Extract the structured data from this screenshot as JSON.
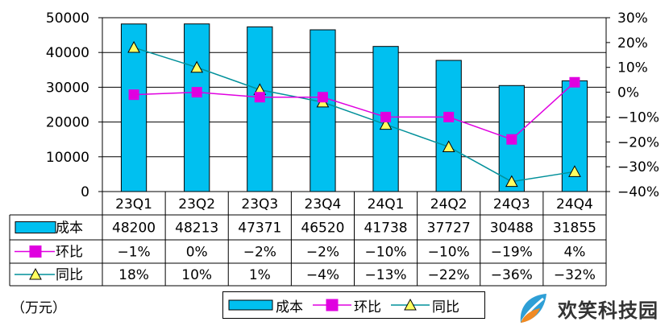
{
  "unit_label": "（万元）",
  "legend": {
    "cost": "成本",
    "qoq": "环比",
    "yoy": "同比"
  },
  "watermark": "欢笑科技园",
  "colors": {
    "bar": "#00c0f0",
    "qoq": "#e000e0",
    "yoy": "#00909a",
    "marker_yoy": "#ffff60"
  },
  "chart_data": {
    "type": "bar",
    "categories": [
      "23Q1",
      "23Q2",
      "23Q3",
      "23Q4",
      "24Q1",
      "24Q2",
      "24Q3",
      "24Q4"
    ],
    "series": [
      {
        "name": "成本",
        "type": "bar",
        "axis": "left",
        "values": [
          48200,
          48213,
          47371,
          46520,
          41738,
          37727,
          30488,
          31855
        ],
        "labels": [
          "48200",
          "48213",
          "47371",
          "46520",
          "41738",
          "37727",
          "30488",
          "31855"
        ]
      },
      {
        "name": "环比",
        "type": "line",
        "axis": "right",
        "values": [
          -1,
          0,
          -2,
          -2,
          -10,
          -10,
          -19,
          4
        ],
        "labels": [
          "-1%",
          "0%",
          "-2%",
          "-2%",
          "-10%",
          "-10%",
          "-19%",
          "4%"
        ]
      },
      {
        "name": "同比",
        "type": "line",
        "axis": "right",
        "values": [
          18,
          10,
          1,
          -4,
          -13,
          -22,
          -36,
          -32
        ],
        "labels": [
          "18%",
          "10%",
          "1%",
          "-4%",
          "-13%",
          "-22%",
          "-36%",
          "-32%"
        ]
      }
    ],
    "y_left": {
      "ylim": [
        0,
        50000
      ],
      "ticks": [
        "0",
        "10000",
        "20000",
        "30000",
        "40000",
        "50000"
      ]
    },
    "y_right": {
      "ylim": [
        -40,
        30
      ],
      "ticks": [
        "-40%",
        "-30%",
        "-20%",
        "-10%",
        "0%",
        "10%",
        "20%",
        "30%"
      ]
    },
    "grid": true,
    "legend_position": "bottom"
  }
}
